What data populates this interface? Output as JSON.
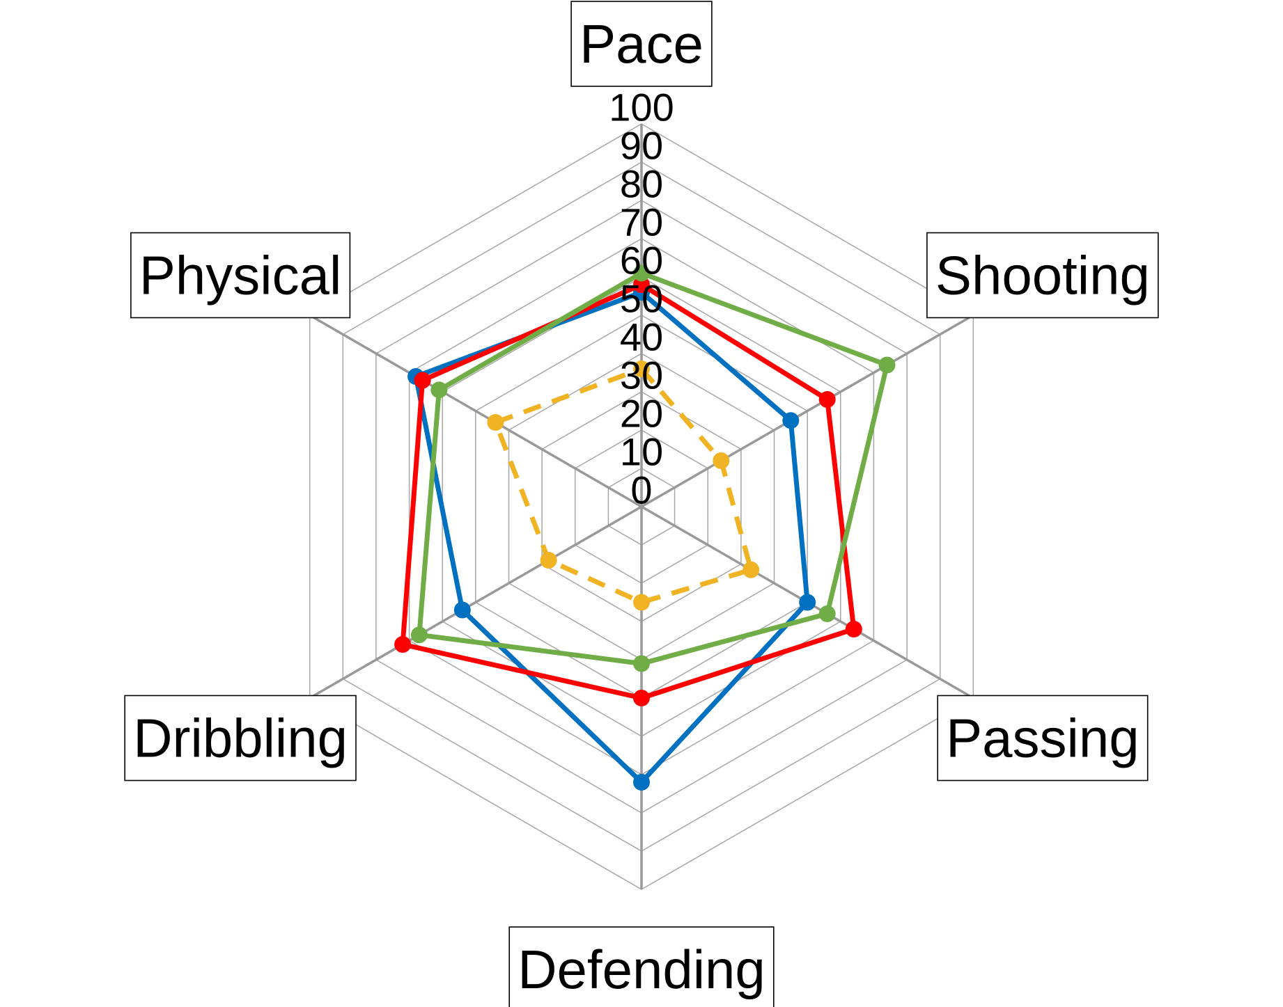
{
  "chart_data": {
    "type": "radar",
    "title": "",
    "axes": [
      "Pace",
      "Shooting",
      "Passing",
      "Defending",
      "Dribbling",
      "Physical"
    ],
    "rlim": [
      0,
      100
    ],
    "ticks": [
      "0",
      "10",
      "20",
      "30",
      "40",
      "50",
      "60",
      "70",
      "80",
      "90",
      "100"
    ],
    "grid": true,
    "legend": "none",
    "series": [
      {
        "color": "#0070c0",
        "dash": false,
        "values": [
          56,
          45,
          50,
          72,
          54,
          68
        ]
      },
      {
        "color": "#ff0000",
        "dash": false,
        "values": [
          58,
          56,
          64,
          50,
          72,
          66
        ]
      },
      {
        "color": "#70ad47",
        "dash": false,
        "values": [
          61,
          74,
          56,
          41,
          67,
          61
        ]
      },
      {
        "color": "#f0b323",
        "dash": true,
        "values": [
          36,
          24,
          33,
          25,
          28,
          44
        ]
      }
    ]
  }
}
